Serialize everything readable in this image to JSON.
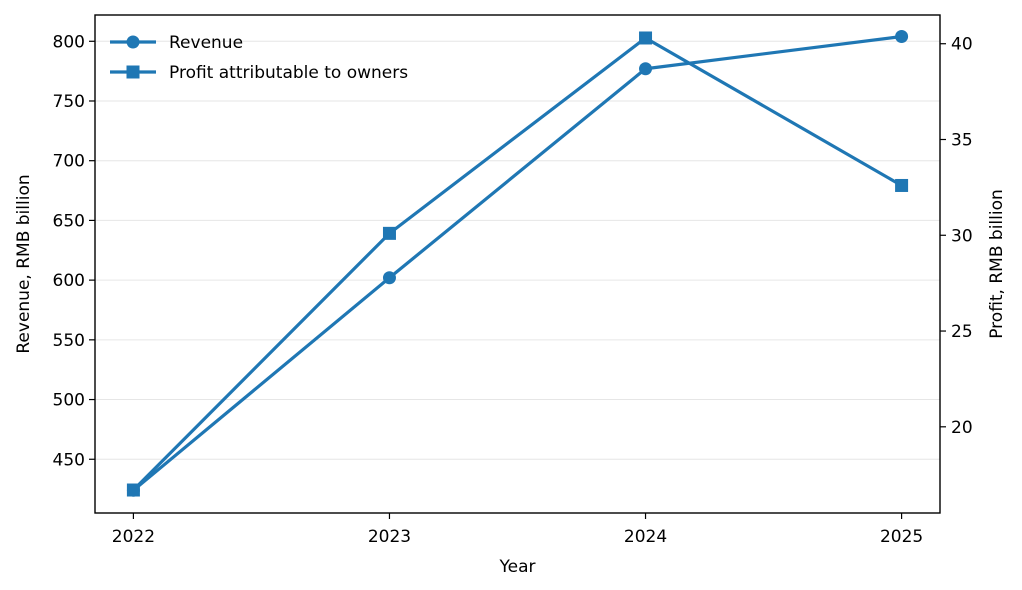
{
  "chart_data": {
    "type": "line",
    "x": [
      2022,
      2023,
      2024,
      2025
    ],
    "xlabel": "Year",
    "ylabel_left": "Revenue, RMB billion",
    "ylabel_right": "Profit, RMB billion",
    "ylim_left": [
      405,
      822
    ],
    "yticks_left": [
      450,
      500,
      550,
      600,
      650,
      700,
      750,
      800
    ],
    "ylim_right": [
      15.5,
      41.5
    ],
    "yticks_right": [
      20,
      25,
      30,
      35,
      40
    ],
    "grid": "horizontal",
    "legend_position": "top-left",
    "series": [
      {
        "name": "Revenue",
        "axis": "left",
        "marker": "circle",
        "color": "#1f77b4",
        "values": [
          424,
          602,
          777,
          804
        ]
      },
      {
        "name": "Profit attributable to owners",
        "axis": "right",
        "marker": "square",
        "color": "#1f77b4",
        "values": [
          16.7,
          30.1,
          40.3,
          32.6
        ]
      }
    ]
  }
}
